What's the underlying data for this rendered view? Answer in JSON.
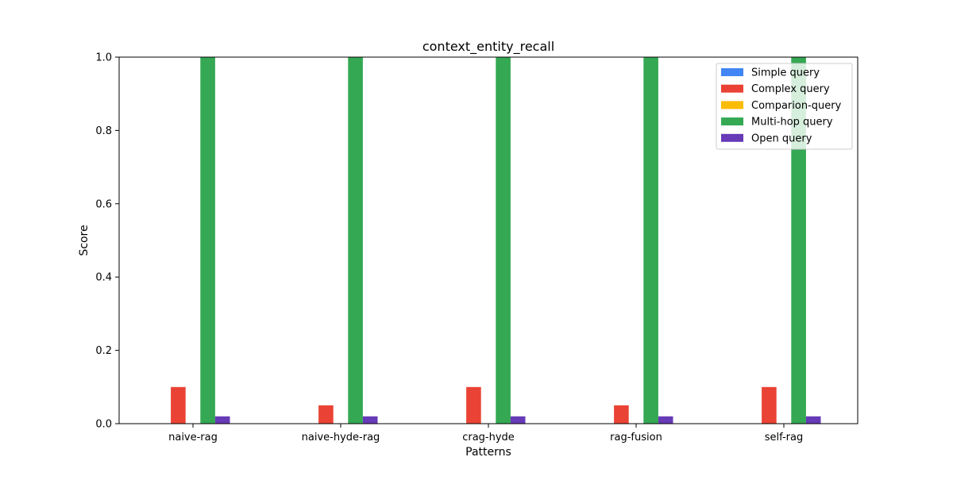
{
  "chart_data": {
    "type": "bar",
    "title": "context_entity_recall",
    "xlabel": "Patterns",
    "ylabel": "Score",
    "ylim": [
      0,
      1.0
    ],
    "yticks": [
      "0.0",
      "0.2",
      "0.4",
      "0.6",
      "0.8",
      "1.0"
    ],
    "grid": false,
    "legend_position": "top-right",
    "categories": [
      "naive-rag",
      "naive-hyde-rag",
      "crag-hyde",
      "rag-fusion",
      "self-rag"
    ],
    "series": [
      {
        "name": "Simple query",
        "color": "#4285f4",
        "values": [
          0,
          0,
          0,
          0,
          0
        ]
      },
      {
        "name": "Complex query",
        "color": "#ea4335",
        "values": [
          0.1,
          0.05,
          0.1,
          0.05,
          0.1
        ]
      },
      {
        "name": "Comparion-query",
        "color": "#fbbc05",
        "values": [
          0,
          0,
          0,
          0,
          0
        ]
      },
      {
        "name": "Multi-hop query",
        "color": "#34a853",
        "values": [
          1.0,
          1.0,
          1.0,
          1.0,
          1.0
        ]
      },
      {
        "name": "Open query",
        "color": "#673ab7",
        "values": [
          0.02,
          0.02,
          0.02,
          0.02,
          0.02
        ]
      }
    ]
  }
}
